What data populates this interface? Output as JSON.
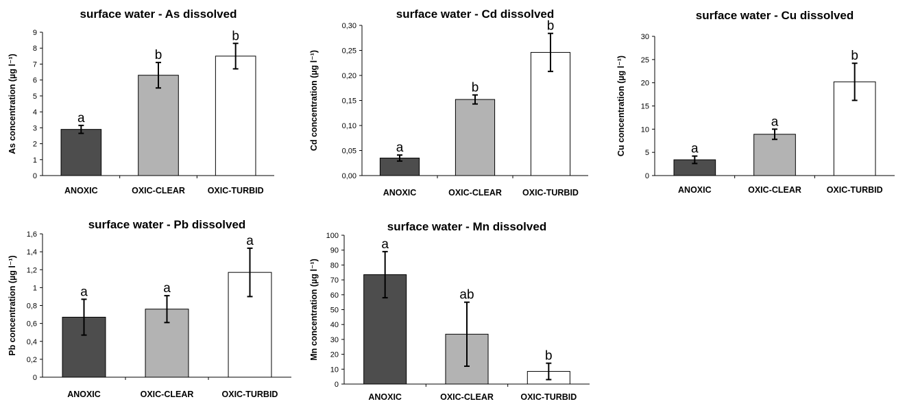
{
  "chart_data": [
    {
      "type": "bar",
      "title": "surface water - As dissolved",
      "ylabel": "As concentration (µg l⁻¹)",
      "categories": [
        "ANOXIC",
        "OXIC-CLEAR",
        "OXIC-TURBID"
      ],
      "values": [
        2.9,
        6.3,
        7.5
      ],
      "errors": [
        0.25,
        0.8,
        0.8
      ],
      "letters": [
        "a",
        "b",
        "b"
      ],
      "ylim": [
        0,
        9
      ],
      "yticks": [
        "0",
        "1",
        "2",
        "3",
        "4",
        "5",
        "6",
        "7",
        "8",
        "9"
      ],
      "colors": [
        "#4d4d4d",
        "#b3b3b3",
        "#ffffff"
      ]
    },
    {
      "type": "bar",
      "title": "surface water - Cd dissolved",
      "ylabel": "Cd concentration (µg l⁻¹)",
      "categories": [
        "ANOXIC",
        "OXIC-CLEAR",
        "OXIC-TURBID"
      ],
      "values": [
        0.035,
        0.152,
        0.246
      ],
      "errors": [
        0.006,
        0.009,
        0.038
      ],
      "letters": [
        "a",
        "b",
        "b"
      ],
      "ylim": [
        0,
        0.3
      ],
      "yticks": [
        "0,00",
        "0,05",
        "0,10",
        "0,15",
        "0,20",
        "0,25",
        "0,30"
      ],
      "colors": [
        "#4d4d4d",
        "#b3b3b3",
        "#ffffff"
      ]
    },
    {
      "type": "bar",
      "title": "surface water - Cu dissolved",
      "ylabel": "Cu concentration (µg l⁻¹)",
      "categories": [
        "ANOXIC",
        "OXIC-CLEAR",
        "OXIC-TURBID"
      ],
      "values": [
        3.4,
        8.9,
        20.2
      ],
      "errors": [
        0.8,
        1.1,
        4.0
      ],
      "letters": [
        "a",
        "a",
        "b"
      ],
      "ylim": [
        0,
        30
      ],
      "yticks": [
        "0",
        "5",
        "10",
        "15",
        "20",
        "25",
        "30"
      ],
      "colors": [
        "#4d4d4d",
        "#b3b3b3",
        "#ffffff"
      ]
    },
    {
      "type": "bar",
      "title": "surface water - Pb dissolved",
      "ylabel": "Pb concentration (µg l⁻¹)",
      "categories": [
        "ANOXIC",
        "OXIC-CLEAR",
        "OXIC-TURBID"
      ],
      "values": [
        0.67,
        0.76,
        1.17
      ],
      "errors": [
        0.2,
        0.15,
        0.27
      ],
      "letters": [
        "a",
        "a",
        "a"
      ],
      "ylim": [
        0,
        1.6
      ],
      "yticks": [
        "0",
        "0,2",
        "0,4",
        "0,6",
        "0,8",
        "1",
        "1,2",
        "1,4",
        "1,6"
      ],
      "colors": [
        "#4d4d4d",
        "#b3b3b3",
        "#ffffff"
      ]
    },
    {
      "type": "bar",
      "title": "surface water - Mn dissolved",
      "ylabel": "Mn concentration (µg l⁻¹)",
      "categories": [
        "ANOXIC",
        "OXIC-CLEAR",
        "OXIC-TURBID"
      ],
      "values": [
        73.5,
        33.5,
        8.5
      ],
      "errors": [
        15.5,
        21.5,
        5.5
      ],
      "letters": [
        "a",
        "ab",
        "b"
      ],
      "ylim": [
        0,
        100
      ],
      "yticks": [
        "0",
        "10",
        "20",
        "30",
        "40",
        "50",
        "60",
        "70",
        "80",
        "90",
        "100"
      ],
      "colors": [
        "#4d4d4d",
        "#b3b3b3",
        "#ffffff"
      ]
    }
  ]
}
